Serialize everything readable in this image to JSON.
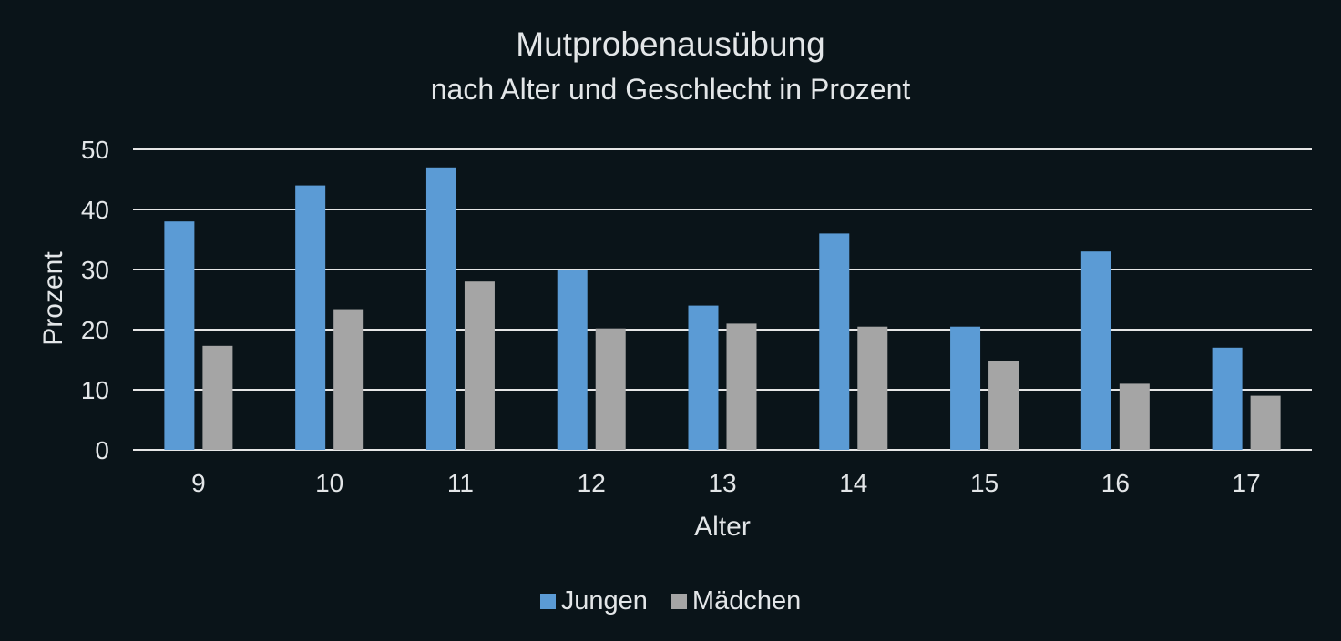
{
  "chart_data": {
    "type": "bar",
    "title": "Mutprobenausübung",
    "subtitle": "nach Alter und Geschlecht in Prozent",
    "xlabel": "Alter",
    "ylabel": "Prozent",
    "categories": [
      "9",
      "10",
      "11",
      "12",
      "13",
      "14",
      "15",
      "16",
      "17"
    ],
    "y_ticks": [
      "0",
      "10",
      "20",
      "30",
      "40",
      "50"
    ],
    "ylim": [
      0,
      50
    ],
    "grid": true,
    "legend_position": "bottom",
    "series": [
      {
        "name": "Jungen",
        "color": "#5b9bd5",
        "values": [
          38,
          44,
          47,
          30,
          24,
          36,
          20.5,
          33,
          17
        ]
      },
      {
        "name": "Mädchen",
        "color": "#a5a5a5",
        "values": [
          17.3,
          23.4,
          28,
          20.2,
          21,
          20.5,
          14.8,
          11,
          9
        ]
      }
    ]
  }
}
